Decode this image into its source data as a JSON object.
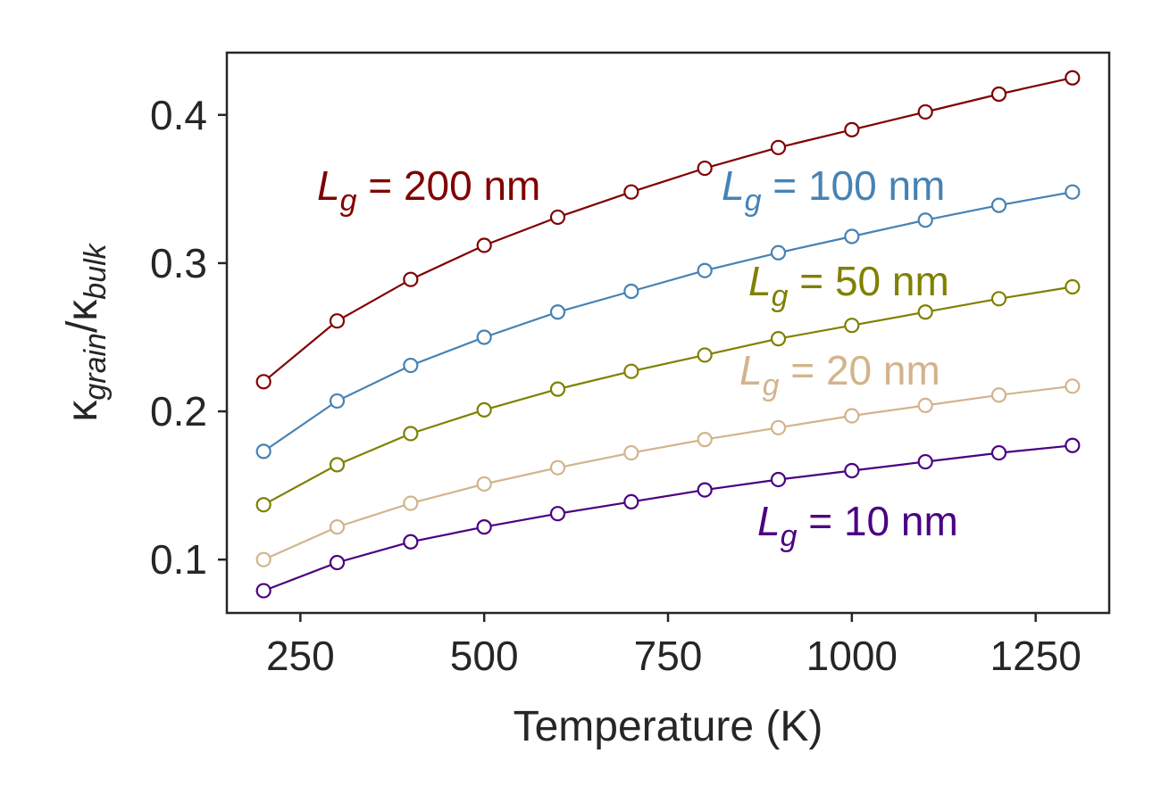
{
  "chart_data": {
    "type": "line",
    "xlabel": "Temperature (K)",
    "ylabel": {
      "base": "κ",
      "num_sub": "grain",
      "sep": "/",
      "den_sub": "bulk"
    },
    "xlim": [
      150,
      1350
    ],
    "ylim": [
      0.064,
      0.442
    ],
    "xticks": [
      250,
      500,
      750,
      1000,
      1250
    ],
    "xtick_labels": [
      "250",
      "500",
      "750",
      "1000",
      "1250"
    ],
    "yticks": [
      0.1,
      0.2,
      0.3,
      0.4
    ],
    "ytick_labels": [
      "0.1",
      "0.2",
      "0.3",
      "0.4"
    ],
    "grid": false,
    "marker": "open-circle",
    "x": [
      200,
      300,
      400,
      500,
      600,
      700,
      800,
      900,
      1000,
      1100,
      1200,
      1300
    ],
    "series": [
      {
        "label_var": "L",
        "label_sub": "g",
        "label_rest": " = 200 nm",
        "color": "#800000",
        "values": [
          0.22,
          0.261,
          0.289,
          0.312,
          0.331,
          0.348,
          0.364,
          0.378,
          0.39,
          0.402,
          0.414,
          0.425
        ]
      },
      {
        "label_var": "L",
        "label_sub": "g",
        "label_rest": " = 100 nm",
        "color": "#4682B4",
        "values": [
          0.173,
          0.207,
          0.231,
          0.25,
          0.267,
          0.281,
          0.295,
          0.307,
          0.318,
          0.329,
          0.339,
          0.348
        ]
      },
      {
        "label_var": "L",
        "label_sub": "g",
        "label_rest": " = 50 nm",
        "color": "#808000",
        "values": [
          0.137,
          0.164,
          0.185,
          0.201,
          0.215,
          0.227,
          0.238,
          0.249,
          0.258,
          0.267,
          0.276,
          0.284
        ]
      },
      {
        "label_var": "L",
        "label_sub": "g",
        "label_rest": " = 20 nm",
        "color": "#D2B48C",
        "values": [
          0.1,
          0.122,
          0.138,
          0.151,
          0.162,
          0.172,
          0.181,
          0.189,
          0.197,
          0.204,
          0.211,
          0.217
        ]
      },
      {
        "label_var": "L",
        "label_sub": "g",
        "label_rest": " = 10 nm",
        "color": "#4B0082",
        "values": [
          0.079,
          0.098,
          0.112,
          0.122,
          0.131,
          0.139,
          0.147,
          0.154,
          0.16,
          0.166,
          0.172,
          0.177
        ]
      }
    ]
  }
}
